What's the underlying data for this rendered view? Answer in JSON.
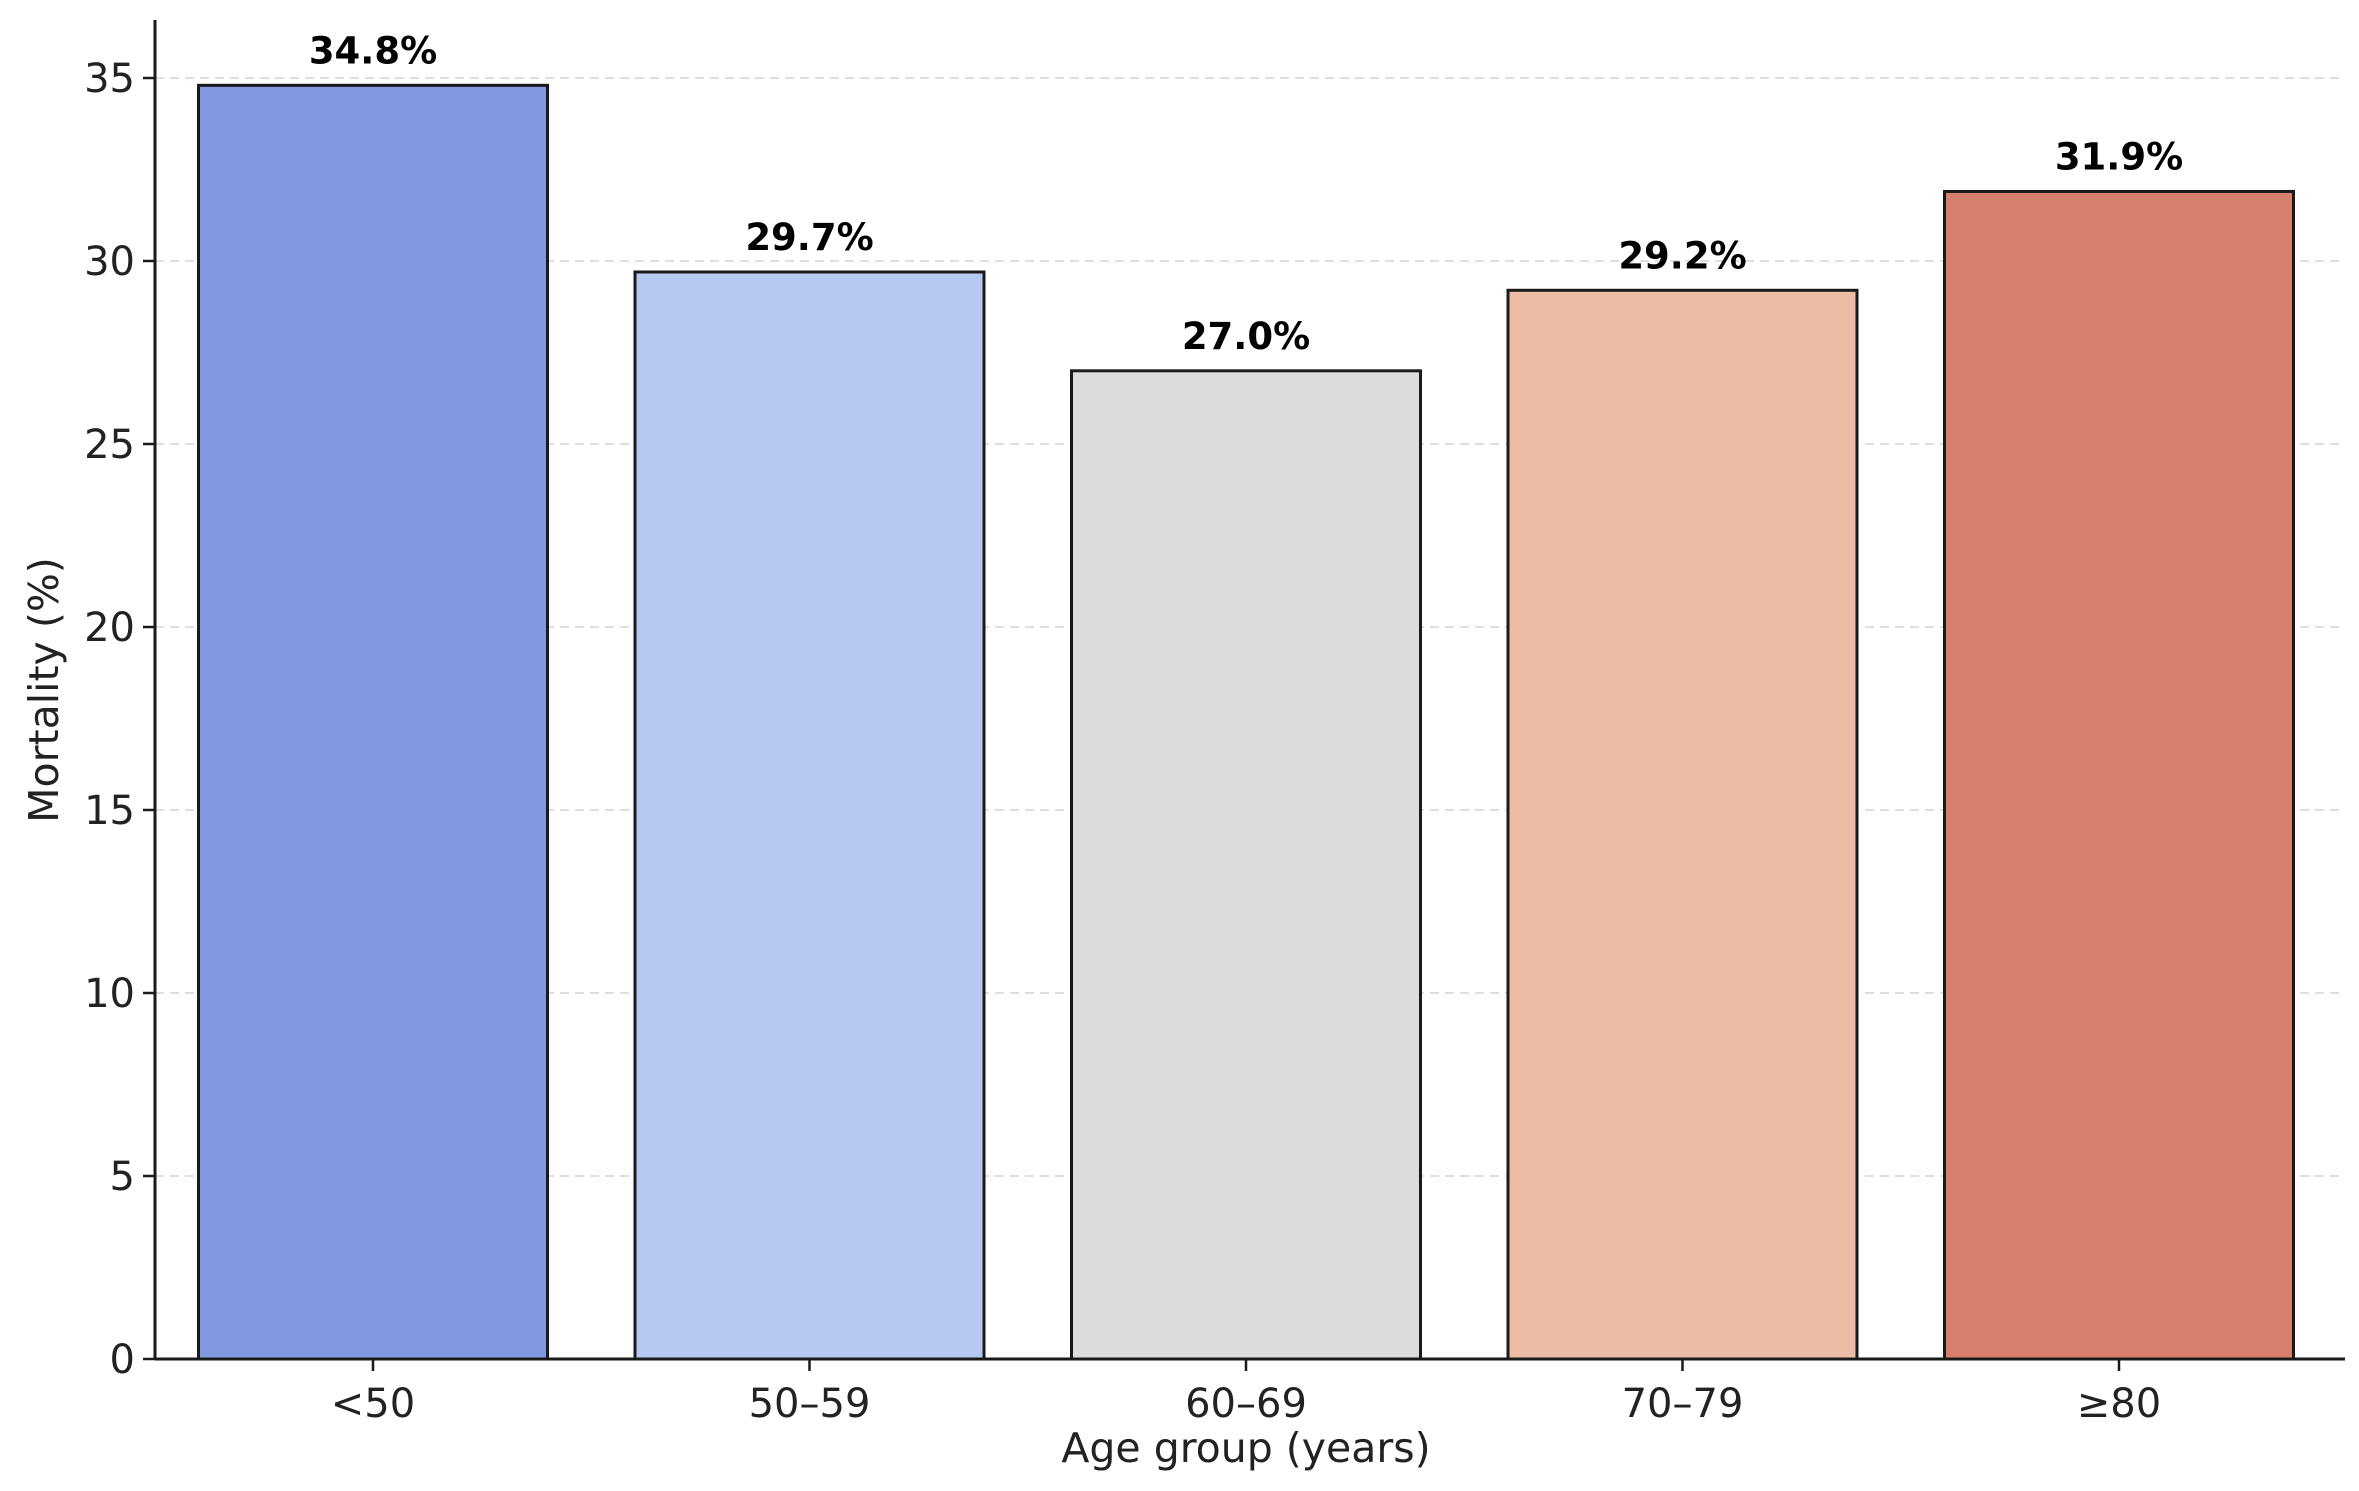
{
  "chart_data": {
    "type": "bar",
    "title": "",
    "xlabel": "Age group (years)",
    "ylabel": "Mortality (%)",
    "categories": [
      "<50",
      "50–59",
      "60–69",
      "70–79",
      "≥80"
    ],
    "values": [
      34.8,
      29.7,
      27.0,
      29.2,
      31.9
    ],
    "value_labels": [
      "34.8%",
      "29.7%",
      "27.0%",
      "29.2%",
      "31.9%"
    ],
    "bar_colors": [
      "#8099e1",
      "#b6c8f2",
      "#dcdcdc",
      "#ebbba4",
      "#d57f6c"
    ],
    "edge_color": "#1a1a1a",
    "ylim": [
      0,
      35
    ],
    "yticks": [
      0,
      5,
      10,
      15,
      20,
      25,
      30,
      35
    ],
    "grid": "y-dashed",
    "legend": "none"
  }
}
